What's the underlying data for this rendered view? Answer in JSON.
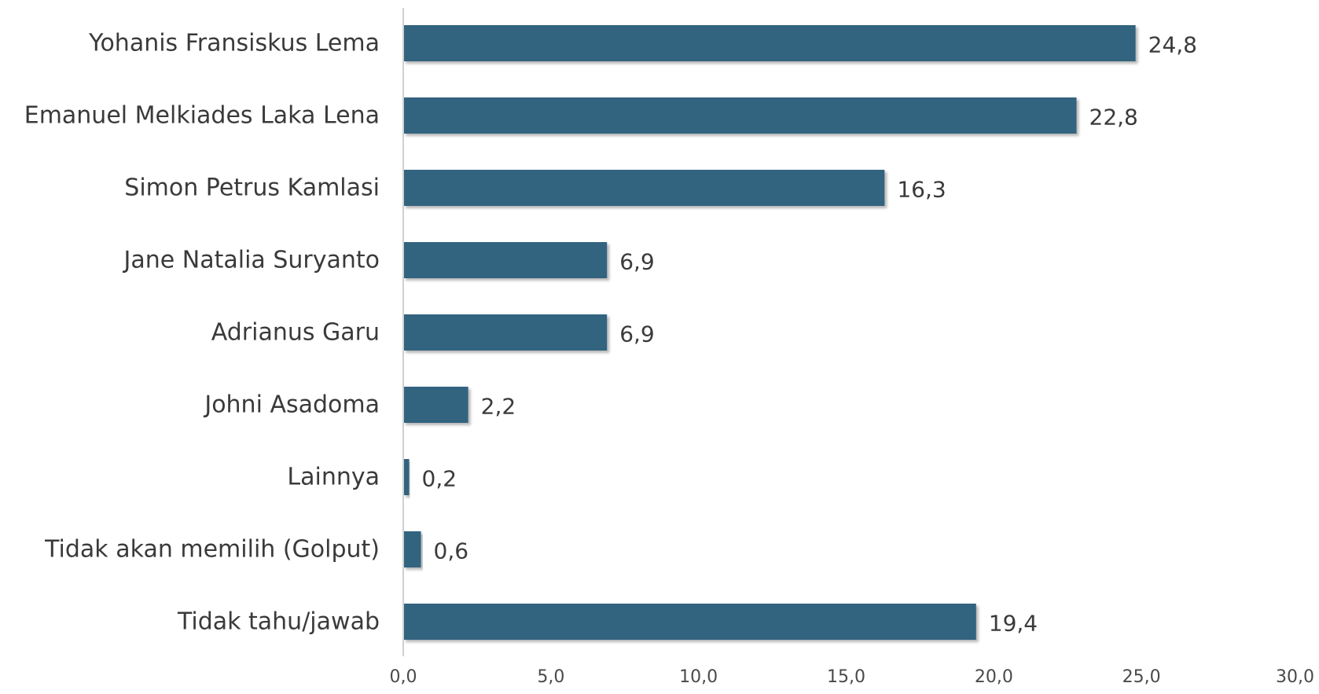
{
  "chart_data": {
    "type": "bar",
    "orientation": "horizontal",
    "categories": [
      "Yohanis Fransiskus Lema",
      "Emanuel Melkiades Laka Lena",
      "Simon Petrus Kamlasi",
      "Jane Natalia Suryanto",
      "Adrianus Garu",
      "Johni Asadoma",
      "Lainnya",
      "Tidak akan memilih (Golput)",
      "Tidak tahu/jawab"
    ],
    "values": [
      24.8,
      22.8,
      16.3,
      6.9,
      6.9,
      2.2,
      0.2,
      0.6,
      19.4
    ],
    "value_labels": [
      "24,8",
      "22,8",
      "16,3",
      "6,9",
      "6,9",
      "2,2",
      "0,2",
      "0,6",
      "19,4"
    ],
    "xlim": [
      0,
      30
    ],
    "x_ticks": [
      "0,0",
      "5,0",
      "10,0",
      "15,0",
      "20,0",
      "25,0",
      "30,0"
    ],
    "grid": false,
    "legend": "none",
    "bar_color": "#30647f",
    "title": "",
    "xlabel": "",
    "ylabel": ""
  }
}
